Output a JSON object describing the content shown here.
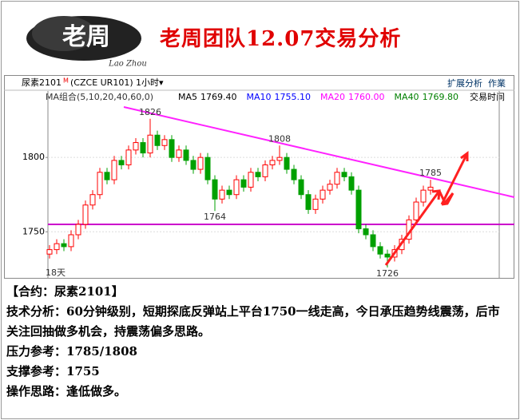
{
  "header": {
    "logo": "老周",
    "logo_sub": "Lao Zhou",
    "title": "老周团队12.07交易分析"
  },
  "toolbar": {
    "symbol": "尿素2101",
    "flag": "M",
    "code": "(CZCE UR101)",
    "period": "1小时▾",
    "extend": "扩展分析",
    "work": "作業"
  },
  "legend": {
    "group": "MA组合(5,10,20,40,60,0)",
    "items": [
      {
        "label": "MA5",
        "value": "1769.40",
        "color": "#000000"
      },
      {
        "label": "MA10",
        "value": "1755.10",
        "color": "#0000ff"
      },
      {
        "label": "MA20",
        "value": "1760.00",
        "color": "#ff00ff"
      },
      {
        "label": "MA40",
        "value": "1769.80",
        "color": "#008000"
      }
    ],
    "time": "交易时间"
  },
  "chart_data": {
    "type": "candlestick",
    "up_color": "#ff0000",
    "down_color": "#00a000",
    "open": [
      1735,
      1738,
      1742,
      1740,
      1748,
      1755,
      1768,
      1775,
      1790,
      1785,
      1798,
      1795,
      1805,
      1810,
      1803,
      1815,
      1808,
      1812,
      1800,
      1805,
      1798,
      1792,
      1800,
      1785,
      1772,
      1778,
      1775,
      1785,
      1780,
      1790,
      1787,
      1795,
      1798,
      1800,
      1792,
      1785,
      1775,
      1765,
      1772,
      1778,
      1782,
      1790,
      1787,
      1778,
      1752,
      1748,
      1740,
      1735,
      1733,
      1738,
      1745,
      1758,
      1770,
      1778
    ],
    "high": [
      1741,
      1745,
      1745,
      1751,
      1758,
      1771,
      1778,
      1793,
      1793,
      1801,
      1801,
      1808,
      1813,
      1813,
      1826,
      1818,
      1815,
      1815,
      1808,
      1808,
      1801,
      1803,
      1803,
      1788,
      1781,
      1781,
      1788,
      1788,
      1793,
      1793,
      1798,
      1801,
      1808,
      1803,
      1795,
      1788,
      1778,
      1775,
      1781,
      1785,
      1793,
      1793,
      1790,
      1781,
      1755,
      1751,
      1743,
      1738,
      1741,
      1748,
      1761,
      1773,
      1781,
      1785
    ],
    "low": [
      1732,
      1735,
      1737,
      1737,
      1745,
      1752,
      1765,
      1772,
      1782,
      1782,
      1792,
      1792,
      1802,
      1800,
      1800,
      1805,
      1805,
      1797,
      1797,
      1795,
      1789,
      1789,
      1782,
      1764,
      1769,
      1772,
      1772,
      1777,
      1777,
      1784,
      1784,
      1792,
      1795,
      1789,
      1782,
      1772,
      1762,
      1762,
      1769,
      1775,
      1779,
      1784,
      1775,
      1749,
      1745,
      1737,
      1732,
      1726,
      1730,
      1735,
      1742,
      1755,
      1767,
      1775
    ],
    "close": [
      1738,
      1742,
      1740,
      1748,
      1755,
      1768,
      1775,
      1790,
      1785,
      1798,
      1795,
      1805,
      1810,
      1803,
      1815,
      1808,
      1812,
      1800,
      1805,
      1798,
      1792,
      1800,
      1785,
      1772,
      1778,
      1775,
      1785,
      1780,
      1790,
      1787,
      1795,
      1798,
      1800,
      1792,
      1785,
      1775,
      1765,
      1772,
      1778,
      1782,
      1790,
      1787,
      1778,
      1752,
      1748,
      1740,
      1735,
      1733,
      1738,
      1745,
      1758,
      1770,
      1778,
      1780
    ],
    "ylim": [
      1719,
      1835
    ],
    "yticks": [
      1750,
      1800
    ],
    "grid": true,
    "support": 1755,
    "support_color": "#cc00cc",
    "annotations": [
      {
        "x": 14,
        "value": 1826,
        "side": "top"
      },
      {
        "x": 32,
        "value": 1808,
        "side": "top"
      },
      {
        "x": 23,
        "value": 1764,
        "side": "bottom"
      },
      {
        "x": 47,
        "value": 1726,
        "side": "bottom"
      },
      {
        "x": 53,
        "value": 1785,
        "side": "top"
      }
    ],
    "corner_label": "18天"
  },
  "text": {
    "contract": "【合约：尿素2101】",
    "analysis": "技术分析：60分钟级别，短期探底反弹站上平台1750一线走高，今日承压趋势线震荡，后市关注回抽做多机会，持震荡偏多思路。",
    "resistance": "压力参考：1785/1808",
    "support": "支撑参考：1755",
    "operation": "操作思路：逢低做多。"
  }
}
